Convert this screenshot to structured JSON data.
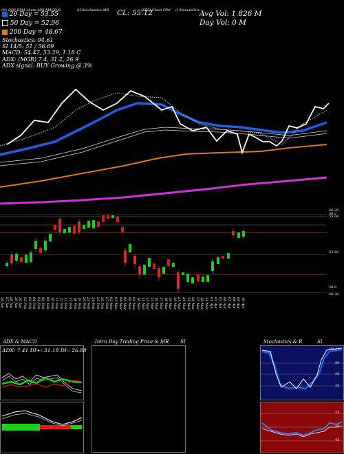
{
  "header": {
    "top_left_codes": "(N) DIW  EMA chart ADX,MACD,R",
    "top_codes_2": "SI,Stochastics,MR",
    "cl_label": "CL: 55.12",
    "top_codes_3": "(EPS) Chart DIW",
    "company": "() ManufaDiw  ...",
    "avg_vol": "Avg Vol: 1.826  M",
    "day_vol": "Day Vol: 0   M",
    "ema20": "20  Day = 53.55",
    "ema50": "50  Day = 52.96",
    "ema200": "200  Day = 48.67",
    "stoch": "Stochastics: 94.61",
    "si": "SI 14/5: 51 / 56.69",
    "macd": "MACD: 54.47, 53.29, 1.18  C",
    "adx": "ADX:                 (MGR) 7.4, 31.2, 26.9",
    "adx_signal": "ADX  signal:                   BUY Growing @ 3%"
  },
  "price_labels": [
    "56.26",
    "56.2",
    "55.08",
    "53.56",
    "50.8",
    "50.38"
  ],
  "dates": [
    "26 Jan",
    "27 Jan",
    "28 Jan",
    "29 Jan",
    "30 Jan",
    "02 Feb",
    "03 Feb",
    "04 Feb",
    "05 Feb",
    "06 Feb",
    "09 Feb",
    "10 Feb",
    "11 Feb",
    "12 Feb",
    "13 Feb",
    "17 Feb",
    "18 Feb",
    "19 Feb",
    "20 Feb",
    "23 Feb",
    "24 Feb",
    "25 Feb",
    "26 Feb",
    "27 Feb",
    "02 Mar",
    "03 Mar",
    "04 Mar",
    "05 Mar",
    "06 Mar",
    "09 Mar",
    "10 Mar",
    "11 Mar",
    "12 Mar",
    "13 Mar",
    "16 Mar",
    "17 Mar",
    "18 Mar",
    "19 Mar",
    "20 Mar",
    "23 Mar",
    "24 Mar",
    "25 Mar",
    "26 Mar",
    "27 Mar",
    "30 Mar",
    "31 Mar",
    "01 Apr",
    "02 Apr",
    "03 Apr",
    "06 Apr",
    "07 Apr",
    "08 Apr",
    "09 Apr",
    "10 Apr"
  ],
  "panels": {
    "adx_title": "ADX  & MACD",
    "adx_values": "ADX: 7.41  DI+: 31.18  DI-: 26.88",
    "intraday_title": "Intra Day Trading Price  & MR",
    "intraday_si": "SI",
    "stoch_title": "Stochastics & R",
    "stoch_si": "SI",
    "stoch_value": "94.61",
    "stoch_ticks": [
      "80",
      "50",
      "20"
    ],
    "rsi_ticks": [
      "55",
      "50",
      "45"
    ]
  },
  "colors": {
    "bg": "#000000",
    "ema20_blue": "#1f5fe6",
    "ema200_orange": "#e07818",
    "mgr_magenta": "#d52ee0",
    "up": "#18d418",
    "down": "#e01818",
    "hline_brown": "#b0522a"
  }
}
